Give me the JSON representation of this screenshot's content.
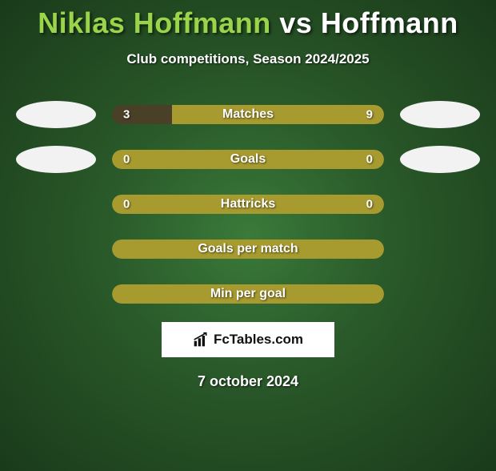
{
  "title": {
    "player1": "Niklas Hoffmann",
    "vs": "vs",
    "player2": "Hoffmann",
    "p1_color": "#9ad44a",
    "vs_color": "#ffffff",
    "p2_color": "#ffffff"
  },
  "subtitle": "Club competitions, Season 2024/2025",
  "colors": {
    "bar_olive": "#a79a2f",
    "bar_dark": "#4a4028",
    "avatar_bg": "#f2f2f2",
    "text": "#ffffff"
  },
  "stats": [
    {
      "label": "Matches",
      "left_value": "3",
      "right_value": "9",
      "left_pct": 22,
      "right_pct": 78,
      "left_color": "#4a4028",
      "right_color": "#a79a2f",
      "show_avatars": true
    },
    {
      "label": "Goals",
      "left_value": "0",
      "right_value": "0",
      "left_pct": 0,
      "right_pct": 100,
      "left_color": "#4a4028",
      "right_color": "#a79a2f",
      "show_avatars": true
    },
    {
      "label": "Hattricks",
      "left_value": "0",
      "right_value": "0",
      "left_pct": 0,
      "right_pct": 100,
      "left_color": "#4a4028",
      "right_color": "#a79a2f",
      "show_avatars": false
    },
    {
      "label": "Goals per match",
      "left_value": "",
      "right_value": "",
      "left_pct": 0,
      "right_pct": 100,
      "left_color": "#4a4028",
      "right_color": "#a79a2f",
      "show_avatars": false
    },
    {
      "label": "Min per goal",
      "left_value": "",
      "right_value": "",
      "left_pct": 0,
      "right_pct": 100,
      "left_color": "#4a4028",
      "right_color": "#a79a2f",
      "show_avatars": false
    }
  ],
  "logo": {
    "text": "FcTables.com"
  },
  "date": "7 october 2024"
}
